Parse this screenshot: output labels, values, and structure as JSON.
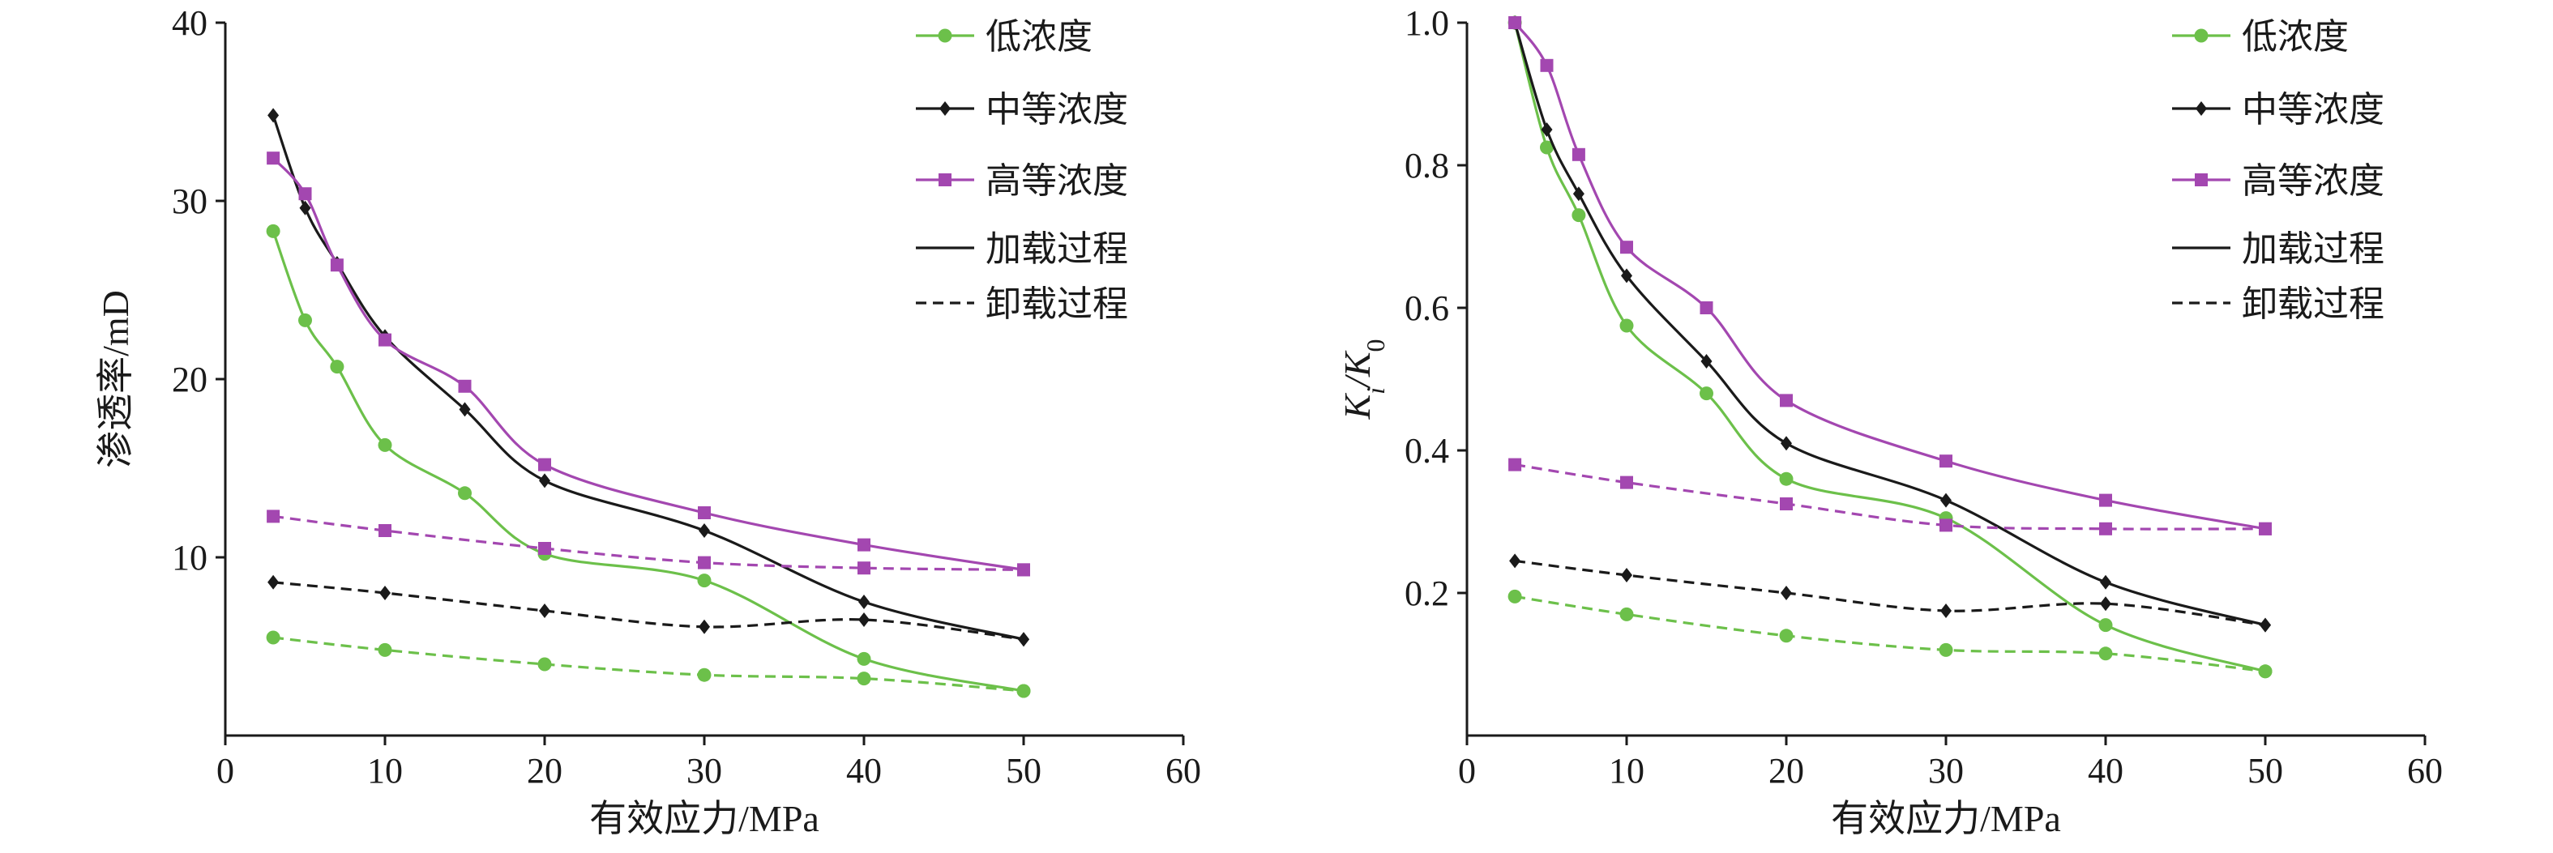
{
  "colors": {
    "low": "#6cc04a",
    "medium": "#1a1a1a",
    "high": "#a347b0",
    "axis": "#1a1a1a"
  },
  "legend": {
    "items": [
      {
        "label": "低浓度",
        "key": "low",
        "marker": "circle",
        "style": "solid"
      },
      {
        "label": "中等浓度",
        "key": "medium",
        "marker": "diamond",
        "style": "solid"
      },
      {
        "label": "高等浓度",
        "key": "high",
        "marker": "square",
        "style": "solid"
      },
      {
        "label": "加载过程",
        "key": "medium",
        "marker": "none",
        "style": "solid"
      },
      {
        "label": "卸载过程",
        "key": "medium",
        "marker": "none",
        "style": "dashed"
      }
    ]
  },
  "chart_data": [
    {
      "type": "line",
      "title": "",
      "xlabel": "有效应力/MPa",
      "ylabel": "渗透率/mD",
      "xlim": [
        0,
        60
      ],
      "ylim": [
        0,
        40
      ],
      "xticks": [
        0,
        10,
        20,
        30,
        40,
        50,
        60
      ],
      "xtick_labels": [
        "0",
        "10",
        "20",
        "30",
        "40",
        "50",
        "60"
      ],
      "yticks": [
        10,
        20,
        30,
        40
      ],
      "ytick_labels": [
        "10",
        "20",
        "30",
        "40"
      ],
      "series": [
        {
          "name": "低浓度 加载过程",
          "key": "low",
          "marker": "circle",
          "style": "solid",
          "x": [
            3,
            5,
            7,
            10,
            15,
            20,
            30,
            40,
            50
          ],
          "y": [
            28.3,
            23.3,
            20.7,
            16.3,
            13.6,
            10.2,
            8.7,
            4.3,
            2.5
          ]
        },
        {
          "name": "中等浓度 加载过程",
          "key": "medium",
          "marker": "diamond",
          "style": "solid",
          "x": [
            3,
            5,
            7,
            10,
            15,
            20,
            30,
            40,
            50
          ],
          "y": [
            34.8,
            29.6,
            26.5,
            22.4,
            18.3,
            14.3,
            11.5,
            7.5,
            5.4
          ]
        },
        {
          "name": "高等浓度 加载过程",
          "key": "high",
          "marker": "square",
          "style": "solid",
          "x": [
            3,
            5,
            7,
            10,
            15,
            20,
            30,
            40,
            50
          ],
          "y": [
            32.4,
            30.4,
            26.4,
            22.2,
            19.6,
            15.2,
            12.5,
            10.7,
            9.3
          ]
        },
        {
          "name": "低浓度 卸载过程",
          "key": "low",
          "marker": "circle",
          "style": "dashed",
          "x": [
            3,
            10,
            20,
            30,
            40,
            50
          ],
          "y": [
            5.5,
            4.8,
            4.0,
            3.4,
            3.2,
            2.5
          ]
        },
        {
          "name": "中等浓度 卸载过程",
          "key": "medium",
          "marker": "diamond",
          "style": "dashed",
          "x": [
            3,
            10,
            20,
            30,
            40,
            50
          ],
          "y": [
            8.6,
            8.0,
            7.0,
            6.1,
            6.5,
            5.4
          ]
        },
        {
          "name": "高等浓度 卸载过程",
          "key": "high",
          "marker": "square",
          "style": "dashed",
          "x": [
            3,
            10,
            20,
            30,
            40,
            50
          ],
          "y": [
            12.3,
            11.5,
            10.5,
            9.7,
            9.4,
            9.3
          ]
        }
      ]
    },
    {
      "type": "line",
      "title": "",
      "xlabel": "有效应力/MPa",
      "ylabel_main": "K",
      "ylabel_sub_i": "i",
      "ylabel_sep": "/K",
      "ylabel_sub_0": "0",
      "xlim": [
        0,
        60
      ],
      "ylim": [
        0,
        1.0
      ],
      "xticks": [
        0,
        10,
        20,
        30,
        40,
        50,
        60
      ],
      "xtick_labels": [
        "0",
        "10",
        "20",
        "30",
        "40",
        "50",
        "60"
      ],
      "yticks": [
        0.2,
        0.4,
        0.6,
        0.8,
        1.0
      ],
      "ytick_labels": [
        "0.2",
        "0.4",
        "0.6",
        "0.8",
        "1.0"
      ],
      "series": [
        {
          "name": "低浓度 加载过程",
          "key": "low",
          "marker": "circle",
          "style": "solid",
          "x": [
            3,
            5,
            7,
            10,
            15,
            20,
            30,
            40,
            50
          ],
          "y": [
            1.0,
            0.825,
            0.73,
            0.575,
            0.48,
            0.36,
            0.305,
            0.155,
            0.09
          ]
        },
        {
          "name": "中等浓度 加载过程",
          "key": "medium",
          "marker": "diamond",
          "style": "solid",
          "x": [
            3,
            5,
            7,
            10,
            15,
            20,
            30,
            40,
            50
          ],
          "y": [
            1.0,
            0.85,
            0.76,
            0.645,
            0.525,
            0.41,
            0.33,
            0.215,
            0.155
          ]
        },
        {
          "name": "高等浓度 加载过程",
          "key": "high",
          "marker": "square",
          "style": "solid",
          "x": [
            3,
            5,
            7,
            10,
            15,
            20,
            30,
            40,
            50
          ],
          "y": [
            1.0,
            0.94,
            0.815,
            0.685,
            0.6,
            0.47,
            0.385,
            0.33,
            0.29
          ]
        },
        {
          "name": "低浓度 卸载过程",
          "key": "low",
          "marker": "circle",
          "style": "dashed",
          "x": [
            3,
            10,
            20,
            30,
            40,
            50
          ],
          "y": [
            0.195,
            0.17,
            0.14,
            0.12,
            0.115,
            0.09
          ]
        },
        {
          "name": "中等浓度 卸载过程",
          "key": "medium",
          "marker": "diamond",
          "style": "dashed",
          "x": [
            3,
            10,
            20,
            30,
            40,
            50
          ],
          "y": [
            0.245,
            0.225,
            0.2,
            0.175,
            0.185,
            0.155
          ]
        },
        {
          "name": "高等浓度 卸载过程",
          "key": "high",
          "marker": "square",
          "style": "dashed",
          "x": [
            3,
            10,
            20,
            30,
            40,
            50
          ],
          "y": [
            0.38,
            0.355,
            0.325,
            0.295,
            0.29,
            0.29
          ]
        }
      ]
    }
  ]
}
